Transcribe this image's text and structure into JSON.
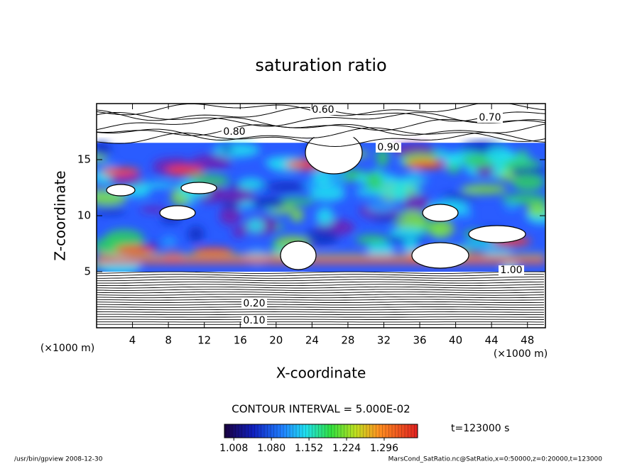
{
  "chart_data": {
    "type": "contour",
    "title": "saturation ratio",
    "xlabel": "X-coordinate",
    "ylabel": "Z-coordinate",
    "x_unit_label": "(×1000 m)",
    "y_unit_label": "(×1000 m)",
    "xlim": [
      0,
      50
    ],
    "ylim": [
      0,
      20
    ],
    "xticks": [
      4,
      8,
      12,
      16,
      20,
      24,
      28,
      32,
      36,
      40,
      44,
      48
    ],
    "yticks": [
      5,
      10,
      15
    ],
    "contour_interval_label": "CONTOUR INTERVAL = 5.000E-02",
    "time_label": "t=123000 s",
    "contour_labels": [
      {
        "value": 0.1,
        "label": "0.10"
      },
      {
        "value": 0.2,
        "label": "0.20"
      },
      {
        "value": 0.6,
        "label": "0.60"
      },
      {
        "value": 0.7,
        "label": "0.70"
      },
      {
        "value": 0.8,
        "label": "0.80"
      },
      {
        "value": 0.9,
        "label": "0.90"
      },
      {
        "value": 1.0,
        "label": "1.00"
      }
    ],
    "colorbar": {
      "lim": [
        0.99,
        1.36
      ],
      "ticks": [
        1.008,
        {
          "value": 1.08,
          "label": "1.080"
        },
        1.152,
        1.224,
        1.296
      ]
    },
    "footer_left": "/usr/bin/gpview   2008-12-30",
    "footer_right": "MarsCond_SatRatio.nc@SatRatio,x=0:50000,z=0:20000,t=123000"
  }
}
